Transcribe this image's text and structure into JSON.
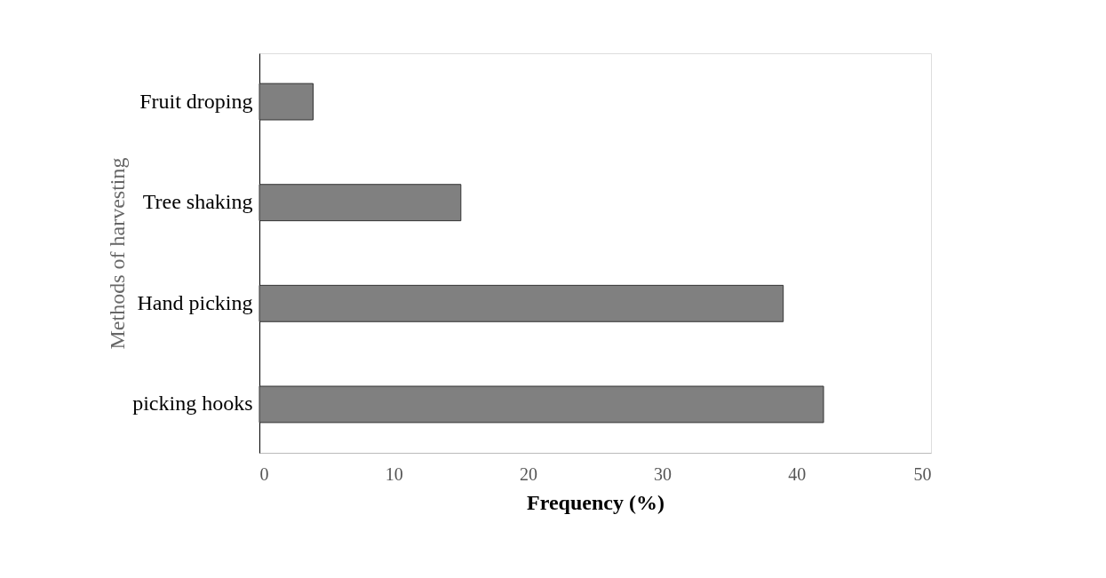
{
  "chart_data": {
    "type": "bar",
    "orientation": "horizontal",
    "xlabel": "Frequency (%)",
    "ylabel": "Methods of harvesting",
    "categories": [
      "Fruit droping",
      "Tree shaking",
      "Hand picking",
      "picking hooks"
    ],
    "values": [
      4,
      15,
      39,
      42
    ],
    "color": "#808080",
    "xlim": [
      0,
      50
    ],
    "xticks": [
      0,
      10,
      20,
      30,
      40,
      50
    ],
    "grid": false
  }
}
